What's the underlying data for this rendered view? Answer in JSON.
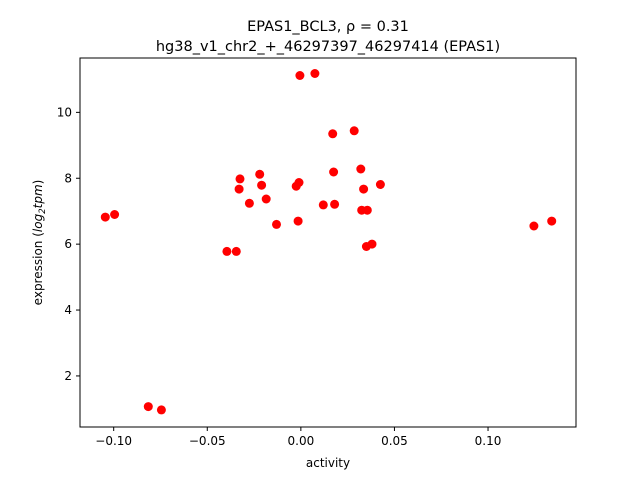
{
  "chart_data": {
    "type": "scatter",
    "title_line1": "EPAS1_BCL3, ρ = 0.31",
    "title_line2": "hg38_v1_chr2_+_46297397_46297414 (EPAS1)",
    "xlabel": "activity",
    "ylabel_prefix": "expression (",
    "ylabel_italic": "log",
    "ylabel_sub": "2",
    "ylabel_italic2": "tpm",
    "ylabel_suffix": ")",
    "xlim": [
      -0.118,
      0.147
    ],
    "ylim": [
      0.45,
      11.65
    ],
    "xticks": [
      {
        "value": -0.1,
        "label": "−0.10"
      },
      {
        "value": -0.05,
        "label": "−0.05"
      },
      {
        "value": 0.0,
        "label": "0.00"
      },
      {
        "value": 0.05,
        "label": "0.05"
      },
      {
        "value": 0.1,
        "label": "0.10"
      }
    ],
    "yticks": [
      {
        "value": 2,
        "label": "2"
      },
      {
        "value": 4,
        "label": "4"
      },
      {
        "value": 6,
        "label": "6"
      },
      {
        "value": 8,
        "label": "8"
      },
      {
        "value": 10,
        "label": "10"
      }
    ],
    "grid": false,
    "marker_color": "#ff0000",
    "points": [
      {
        "x": -0.1045,
        "y": 6.82
      },
      {
        "x": -0.0995,
        "y": 6.9
      },
      {
        "x": -0.0815,
        "y": 1.07
      },
      {
        "x": -0.0745,
        "y": 0.97
      },
      {
        "x": -0.0395,
        "y": 5.78
      },
      {
        "x": -0.0345,
        "y": 5.78
      },
      {
        "x": -0.0325,
        "y": 7.98
      },
      {
        "x": -0.033,
        "y": 7.67
      },
      {
        "x": -0.0275,
        "y": 7.24
      },
      {
        "x": -0.022,
        "y": 8.12
      },
      {
        "x": -0.021,
        "y": 7.79
      },
      {
        "x": -0.0185,
        "y": 7.37
      },
      {
        "x": -0.013,
        "y": 6.6
      },
      {
        "x": -0.0025,
        "y": 7.76
      },
      {
        "x": -0.001,
        "y": 7.87
      },
      {
        "x": -0.0015,
        "y": 6.7
      },
      {
        "x": -0.0005,
        "y": 11.12
      },
      {
        "x": 0.0075,
        "y": 11.18
      },
      {
        "x": 0.012,
        "y": 7.19
      },
      {
        "x": 0.017,
        "y": 9.35
      },
      {
        "x": 0.0175,
        "y": 8.19
      },
      {
        "x": 0.018,
        "y": 7.21
      },
      {
        "x": 0.0285,
        "y": 9.44
      },
      {
        "x": 0.032,
        "y": 8.28
      },
      {
        "x": 0.0325,
        "y": 7.03
      },
      {
        "x": 0.0335,
        "y": 7.67
      },
      {
        "x": 0.0355,
        "y": 7.03
      },
      {
        "x": 0.035,
        "y": 5.93
      },
      {
        "x": 0.038,
        "y": 6.0
      },
      {
        "x": 0.0425,
        "y": 7.81
      },
      {
        "x": 0.1245,
        "y": 6.55
      },
      {
        "x": 0.134,
        "y": 6.7
      }
    ]
  }
}
